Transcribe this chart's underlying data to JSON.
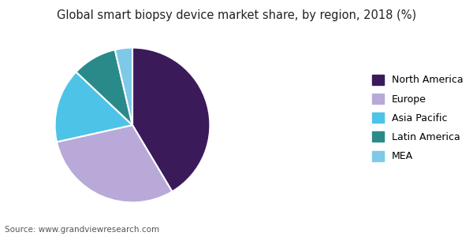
{
  "title": "Global smart biopsy device market share, by region, 2018 (%)",
  "source": "Source: www.grandviewresearch.com",
  "labels": [
    "North America",
    "Europe",
    "Asia Pacific",
    "Latin America",
    "MEA"
  ],
  "values": [
    40,
    29,
    15,
    9,
    3.5
  ],
  "colors": [
    "#3b1a5a",
    "#b8a9d9",
    "#4ec3e8",
    "#2a8a8a",
    "#7ec8e8"
  ],
  "startangle": 90,
  "figsize": [
    6.0,
    3.0
  ],
  "dpi": 100,
  "title_fontsize": 10.5,
  "source_fontsize": 7.5,
  "legend_fontsize": 9,
  "bg_color": "#ffffff",
  "wedge_edge_color": "#ffffff",
  "wedge_linewidth": 1.5
}
